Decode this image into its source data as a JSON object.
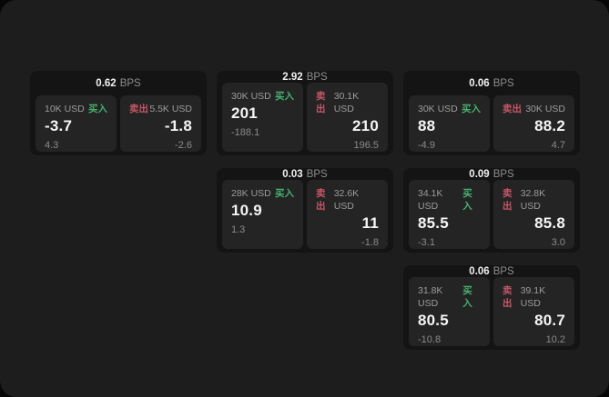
{
  "labels": {
    "buy": "买入",
    "sell": "卖出",
    "bps": "BPS"
  },
  "colors": {
    "outer_background": "#070707",
    "screen_background": "#1d1d1d",
    "card_background": "#141414",
    "tile_background": "#242424",
    "buy_green": "#43b36c",
    "sell_red": "#c75566",
    "primary_text": "#f5f5f5",
    "muted_text": "#9c9c9c",
    "dim_text": "#8a8a8a"
  },
  "cards": [
    {
      "bps": "0.62",
      "buy": {
        "size": "10K USD",
        "price": "-3.7",
        "delta": "4.3"
      },
      "sell": {
        "size": "5.5K USD",
        "price": "-1.8",
        "delta": "-2.6"
      }
    },
    {
      "bps": "2.92",
      "buy": {
        "size": "30K USD",
        "price": "201",
        "delta": "-188.1"
      },
      "sell": {
        "size": "30.1K USD",
        "price": "210",
        "delta": "196.5"
      }
    },
    {
      "bps": "0.06",
      "buy": {
        "size": "30K USD",
        "price": "88",
        "delta": "-4.9"
      },
      "sell": {
        "size": "30K USD",
        "price": "88.2",
        "delta": "4.7"
      }
    },
    {
      "bps": "0.03",
      "buy": {
        "size": "28K USD",
        "price": "10.9",
        "delta": "1.3"
      },
      "sell": {
        "size": "32.6K USD",
        "price": "11",
        "delta": "-1.8"
      }
    },
    {
      "bps": "0.09",
      "buy": {
        "size": "34.1K USD",
        "price": "85.5",
        "delta": "-3.1"
      },
      "sell": {
        "size": "32.8K USD",
        "price": "85.8",
        "delta": "3.0"
      }
    },
    {
      "bps": "0.06",
      "buy": {
        "size": "31.8K USD",
        "price": "80.5",
        "delta": "-10.8"
      },
      "sell": {
        "size": "39.1K USD",
        "price": "80.7",
        "delta": "10.2"
      }
    }
  ]
}
